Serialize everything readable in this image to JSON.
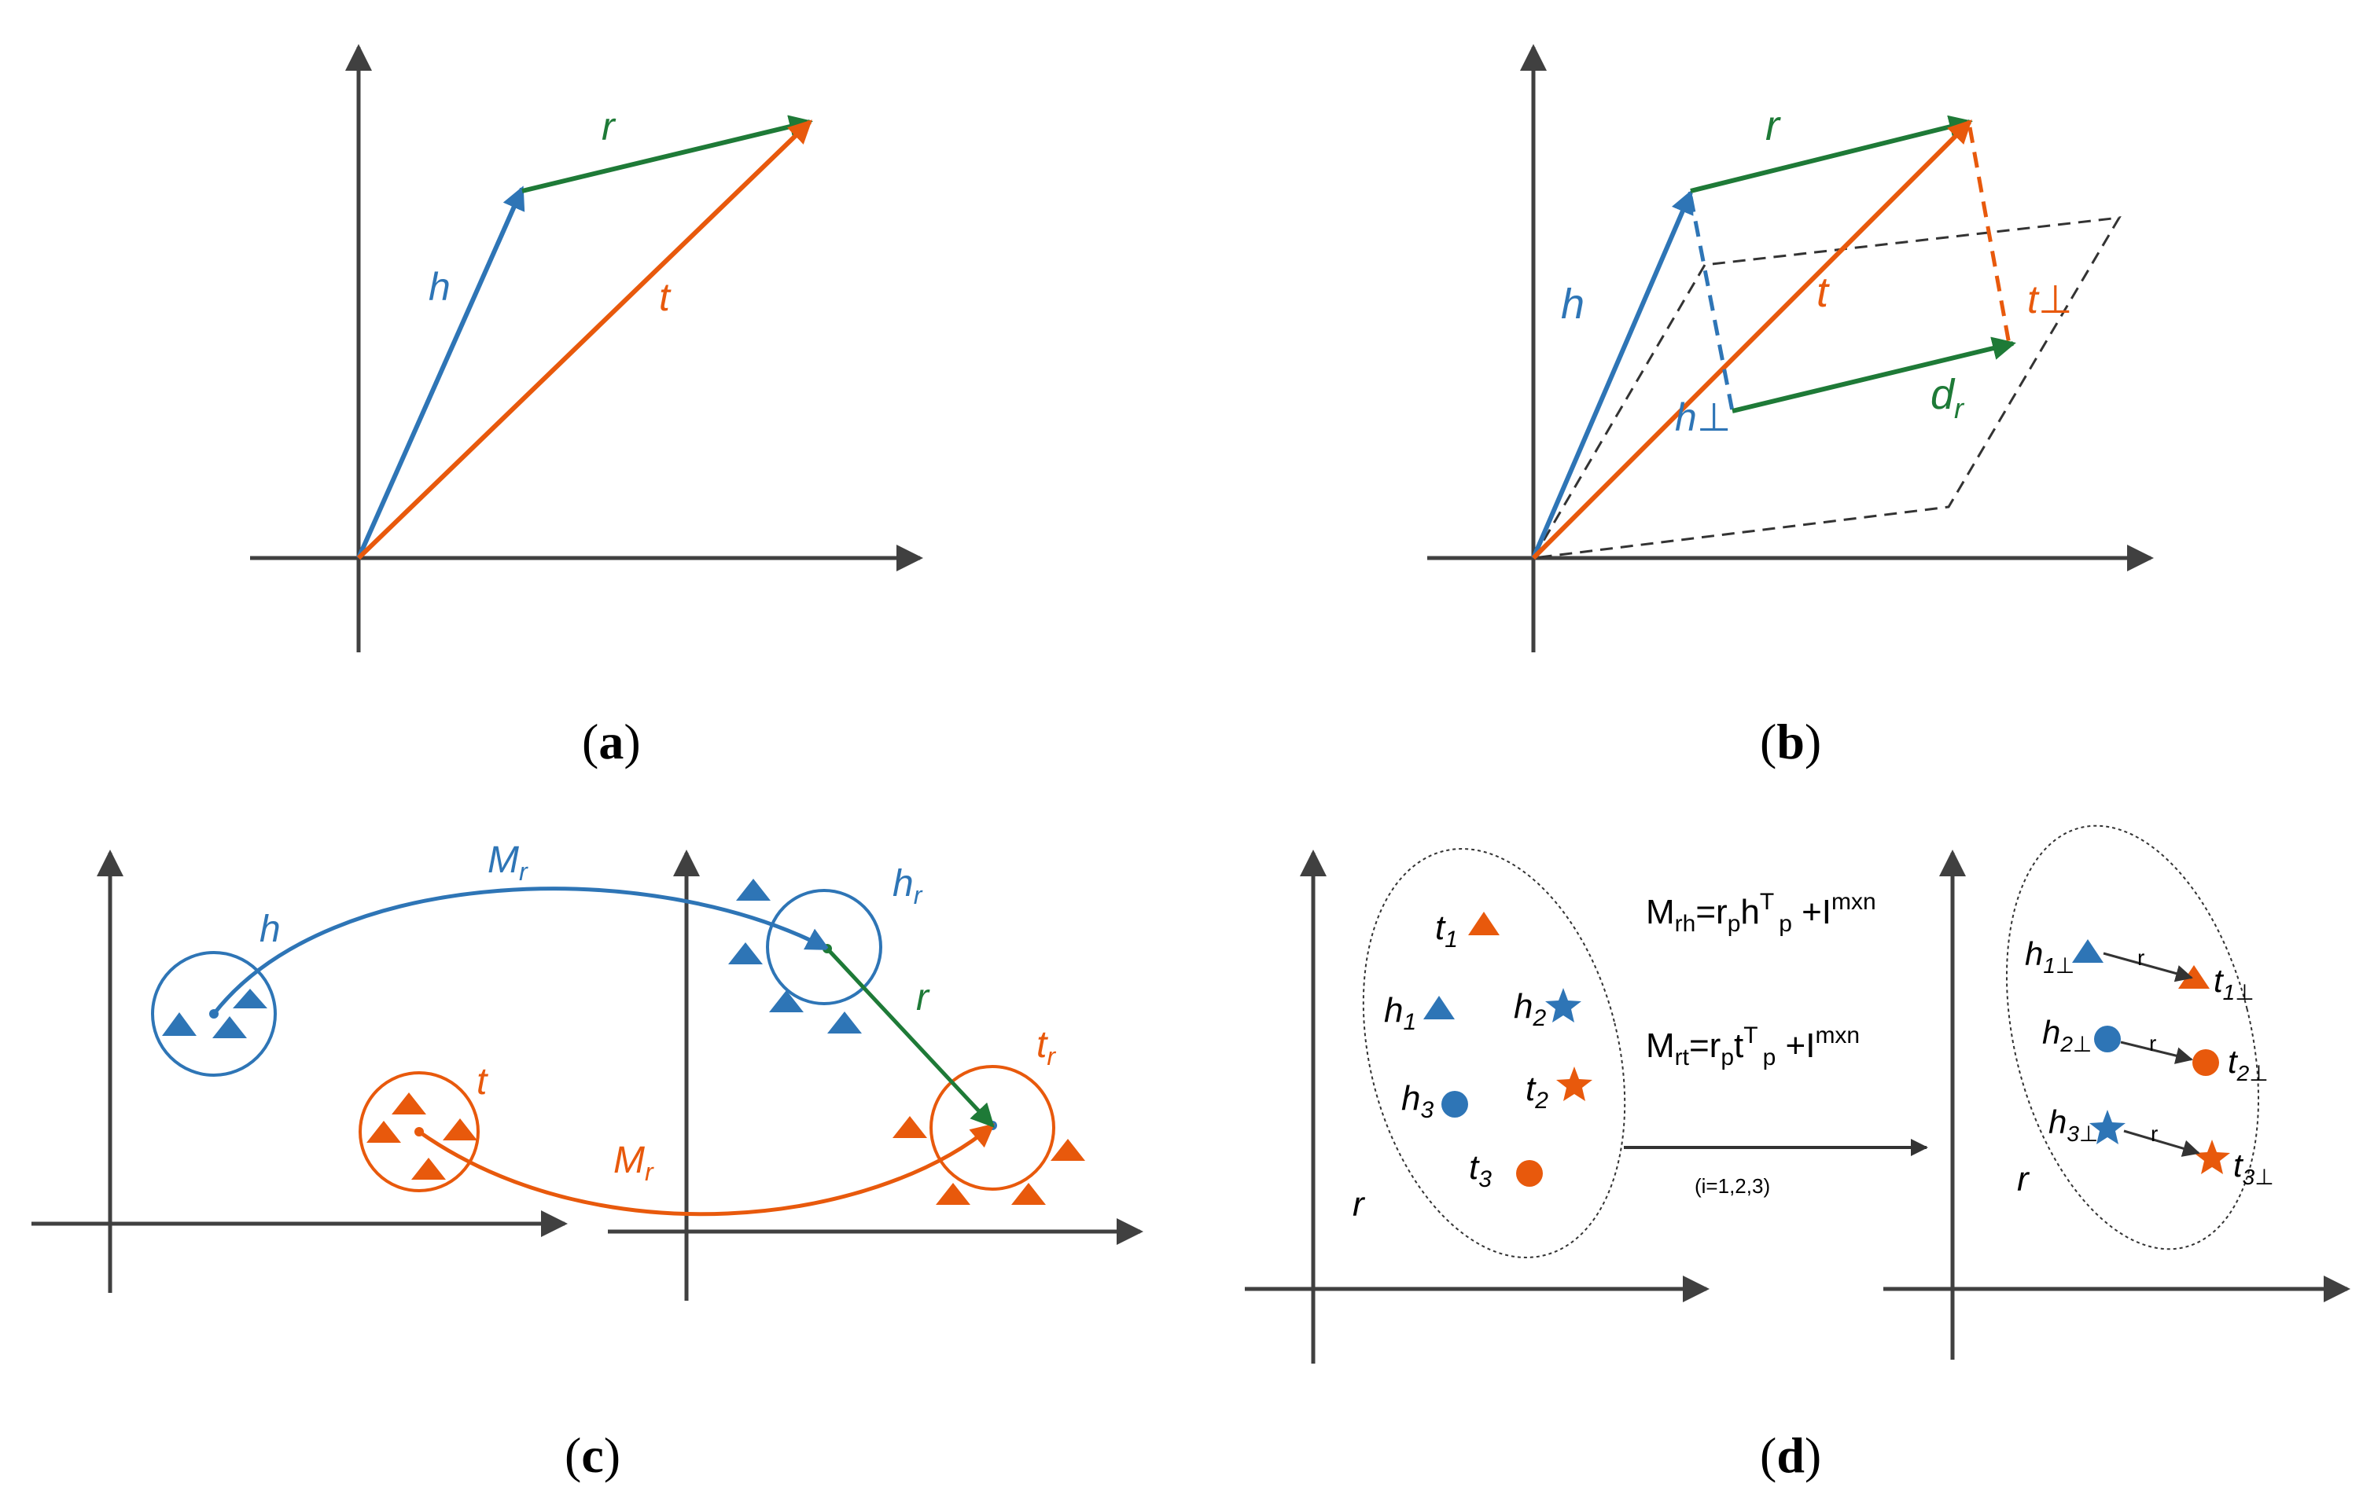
{
  "colors": {
    "blue": "#2e75b6",
    "orange": "#e8590c",
    "green": "#1e7a37",
    "axis": "#404040",
    "dash": "#333333"
  },
  "panel_a": {
    "caption": "(a)",
    "caption_letter": "a",
    "labels": {
      "h": "h",
      "r": "r",
      "t": "t"
    }
  },
  "panel_b": {
    "caption": "(b)",
    "caption_letter": "b",
    "labels": {
      "h": "h",
      "r": "r",
      "t": "t",
      "h_perp": "h⊥",
      "t_perp": "t⊥",
      "d": "d",
      "d_sub": "r"
    }
  },
  "panel_c": {
    "caption": "(c)",
    "caption_letter": "c",
    "labels": {
      "h": "h",
      "t": "t",
      "h_r": "h",
      "h_r_sub": "r",
      "t_r": "t",
      "t_r_sub": "r",
      "r": "r",
      "M": "M",
      "M_sub": "r"
    }
  },
  "panel_d": {
    "caption": "(d)",
    "caption_letter": "d",
    "left_labels": {
      "t1": "t",
      "t1_sub": "1",
      "h1": "h",
      "h1_sub": "1",
      "h2": "h",
      "h2_sub": "2",
      "h3": "h",
      "h3_sub": "3",
      "t2": "t",
      "t2_sub": "2",
      "t3": "t",
      "t3_sub": "3",
      "r": "r"
    },
    "right_labels": {
      "h1p": "h",
      "h1p_sub": "1⊥",
      "t1p": "t",
      "t1p_sub": "1⊥",
      "h2p": "h",
      "h2p_sub": "2⊥",
      "t2p": "t",
      "t2p_sub": "2⊥",
      "h3p": "h",
      "h3p_sub": "3⊥",
      "t3p": "t",
      "t3p_sub": "3⊥",
      "r": "r",
      "arrow_r": "r"
    },
    "formula1": {
      "M": "M",
      "M_sub": "rh",
      "eq": "=r",
      "p1": "p",
      "v": "h",
      "T": "T",
      "p2": "p",
      "plus": " +I",
      "mxn": "mxn"
    },
    "formula2": {
      "M": "M",
      "M_sub": "rt",
      "eq": "=r",
      "p1": "p",
      "v": "t",
      "T": "T",
      "p2": "p",
      "plus": " +I",
      "mxn": "mxn"
    },
    "index_note": "(i=1,2,3)"
  }
}
